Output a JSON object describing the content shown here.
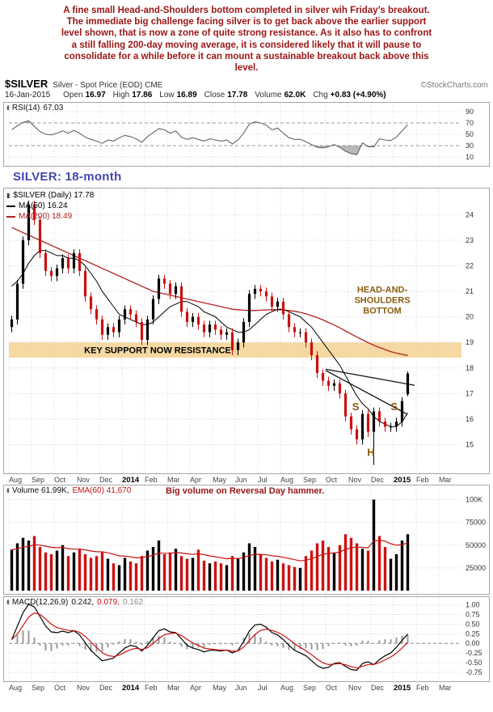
{
  "annotation_header": {
    "lines": [
      "A fine small Head-and-Shoulders bottom completed in silver wih Friday’s breakout.",
      "The immediate big challenge facing silver is to get back above the earlier support",
      "level shown, that is now a zone of quite strong resistance. As it also has to confront",
      "a still falling 200-day moving average, it is considered likely that it will pause to",
      "consolidate for a while before it can mount a sustainable breakout back above this",
      "level."
    ]
  },
  "title": {
    "symbol": "$SILVER",
    "description": "Silver - Spot Price (EOD) CME",
    "copyright": "©StockCharts.com"
  },
  "quote": {
    "date": "16-Jan-2015",
    "items": [
      {
        "label": "Open",
        "value": "16.97"
      },
      {
        "label": "High",
        "value": "17.86"
      },
      {
        "label": "Low",
        "value": "16.89"
      },
      {
        "label": "Close",
        "value": "17.78"
      },
      {
        "label": "Volume",
        "value": "62.0K"
      },
      {
        "label": "Chg",
        "value": "+0.83 (+4.90%)"
      }
    ]
  },
  "rsi_panel": {
    "label": "RSI(14)",
    "value": "67.03"
  },
  "price_panel": {
    "watermark": "SILVER: 18-month",
    "legend": [
      {
        "label": "$SILVER (Daily)",
        "value": "17.78",
        "color": "#000000"
      },
      {
        "label": "MA(50)",
        "value": "16.24",
        "color": "#000000"
      },
      {
        "label": "MA(200)",
        "value": "18.49",
        "color": "#b22222"
      }
    ],
    "band_label": "KEY SUPPORT NOW RESISTANCE",
    "hs_label_lines": [
      "HEAD-AND-",
      "SHOULDERS",
      "BOTTOM"
    ]
  },
  "volume_panel": {
    "label": "Volume 61.99K,",
    "ema_label": "EMA(60) 41,670",
    "annotation": "Big volume on Reversal Day hammer."
  },
  "macd_panel": {
    "label": "MACD(12,26,9)",
    "macd_value": "0.242,",
    "signal_value": "0.079,",
    "hist_value": "0.162"
  },
  "colors": {
    "commentary": "#9b1515",
    "watermark_blue": "#4646ad",
    "annotation_brown": "#8a5c10",
    "band": "#f6d9a2",
    "up": "#000000",
    "down": "#cc1111",
    "signal_red": "#cc1111",
    "rsi_line": "#666666",
    "hist_gray": "#999999",
    "ma50": "#000000",
    "ma200": "#b22222"
  },
  "chart_data": {
    "x_axis": {
      "slots": 80,
      "month_slot": 4,
      "months": [
        "Aug",
        "Sep",
        "Oct",
        "Nov",
        "Dec",
        "2014",
        "Feb",
        "Mar",
        "Apr",
        "May",
        "Jun",
        "Jul",
        "Aug",
        "Sep",
        "Oct",
        "Nov",
        "Dec",
        "2015",
        "Feb",
        "Mar"
      ],
      "bold_indices": [
        5,
        17
      ]
    },
    "charts": [
      {
        "id": "rsi",
        "type": "line",
        "title": "RSI(14)",
        "last": 67.03,
        "ylim": [
          0,
          100
        ],
        "overbought": 70,
        "oversold": 30,
        "yticks": [
          [
            "90",
            90
          ],
          [
            "70",
            70
          ],
          [
            "50",
            50
          ],
          [
            "30",
            30
          ],
          [
            "10",
            10
          ]
        ],
        "values": [
          58,
          65,
          71,
          74,
          64,
          55,
          50,
          49,
          52,
          56,
          52,
          57,
          52,
          45,
          41,
          38,
          34,
          40,
          38,
          44,
          48,
          46,
          42,
          36,
          46,
          53,
          60,
          58,
          52,
          56,
          45,
          41,
          44,
          41,
          38,
          42,
          40,
          38,
          40,
          33,
          40,
          52,
          68,
          72,
          70,
          66,
          58,
          61,
          52,
          44,
          41,
          41,
          37,
          32,
          27,
          26,
          28,
          32,
          27,
          20,
          16,
          14,
          35,
          28,
          28,
          42,
          40,
          39,
          45,
          56,
          67
        ]
      },
      {
        "id": "price",
        "type": "candlestick",
        "title": "$SILVER (Daily)",
        "last": 17.78,
        "ylim": [
          14.0,
          24.9
        ],
        "yticks": [
          [
            "24",
            24
          ],
          [
            "23",
            23
          ],
          [
            "22",
            22
          ],
          [
            "21",
            21
          ],
          [
            "20",
            20
          ],
          [
            "19",
            19
          ],
          [
            "18",
            18
          ],
          [
            "17",
            17
          ],
          [
            "16",
            16
          ],
          [
            "15",
            15
          ]
        ],
        "first_open": 19.6,
        "closes": [
          19.9,
          21.3,
          23.0,
          24.4,
          23.8,
          22.5,
          21.8,
          21.6,
          21.9,
          22.3,
          21.9,
          22.5,
          21.8,
          20.8,
          20.3,
          19.9,
          19.3,
          19.6,
          19.4,
          19.9,
          20.3,
          20.1,
          19.8,
          19.1,
          19.9,
          20.7,
          21.5,
          21.3,
          20.9,
          21.2,
          20.2,
          19.8,
          20.0,
          19.7,
          19.4,
          19.7,
          19.5,
          19.3,
          19.4,
          18.7,
          19.0,
          19.8,
          20.9,
          21.1,
          21.0,
          20.8,
          20.4,
          20.6,
          20.1,
          19.6,
          19.4,
          19.4,
          19.0,
          18.5,
          17.8,
          17.5,
          17.3,
          17.4,
          17.0,
          16.1,
          15.6,
          15.2,
          16.2,
          15.5,
          16.3,
          15.9,
          15.7,
          15.7,
          15.9,
          16.7,
          17.78
        ],
        "low_overrides": {
          "61": 15.0,
          "64": 14.2
        },
        "last_bar": {
          "open": 16.97,
          "high": 17.86,
          "low": 16.89,
          "close": 17.78
        },
        "ma50": [
          21.2,
          21.4,
          21.7,
          22.1,
          22.4,
          22.6,
          22.6,
          22.5,
          22.4,
          22.4,
          22.3,
          22.3,
          22.2,
          22.0,
          21.7,
          21.4,
          21.0,
          20.7,
          20.4,
          20.1,
          20.0,
          19.9,
          19.8,
          19.7,
          19.7,
          19.8,
          20.0,
          20.2,
          20.4,
          20.5,
          20.6,
          20.6,
          20.5,
          20.4,
          20.2,
          20.1,
          20.0,
          19.8,
          19.6,
          19.5,
          19.4,
          19.4,
          19.5,
          19.7,
          19.9,
          20.1,
          20.2,
          20.3,
          20.3,
          20.2,
          20.1,
          20.0,
          19.8,
          19.6,
          19.3,
          19.0,
          18.7,
          18.4,
          18.1,
          17.7,
          17.3,
          16.9,
          16.6,
          16.4,
          16.1,
          15.9,
          15.8,
          15.7,
          15.7,
          15.9,
          16.24
        ],
        "ma200": [
          23.5,
          23.4,
          23.3,
          23.2,
          23.1,
          23.0,
          22.9,
          22.8,
          22.7,
          22.6,
          22.5,
          22.4,
          22.3,
          22.2,
          22.1,
          22.0,
          21.9,
          21.8,
          21.7,
          21.6,
          21.5,
          21.4,
          21.3,
          21.2,
          21.1,
          21.0,
          20.95,
          20.9,
          20.85,
          20.8,
          20.75,
          20.7,
          20.65,
          20.6,
          20.55,
          20.5,
          20.45,
          20.4,
          20.35,
          20.3,
          20.28,
          20.26,
          20.25,
          20.25,
          20.26,
          20.27,
          20.28,
          20.28,
          20.27,
          20.25,
          20.22,
          20.18,
          20.12,
          20.05,
          19.97,
          19.88,
          19.78,
          19.68,
          19.57,
          19.45,
          19.33,
          19.21,
          19.1,
          18.99,
          18.89,
          18.8,
          18.72,
          18.64,
          18.58,
          18.53,
          18.49
        ],
        "support_band": [
          18.4,
          19.0
        ],
        "trendlines": [
          [
            [
              55.5,
              17.95
            ],
            [
              71.2,
              17.32
            ]
          ],
          [
            [
              55.5,
              17.9
            ],
            [
              69.8,
              16.2
            ]
          ]
        ],
        "letters": [
          {
            "t": "S",
            "i": 60.8,
            "p": 16.35
          },
          {
            "t": "H",
            "i": 63.5,
            "p": 14.55
          },
          {
            "t": "S",
            "i": 67.6,
            "p": 16.35
          }
        ],
        "hs_label": {
          "i": 65.5,
          "p": 20.95
        }
      },
      {
        "id": "volume",
        "type": "bar",
        "title": "Volume",
        "last_k": 62.0,
        "ema_period": 13,
        "ylim": [
          0,
          112
        ],
        "yticks": [
          [
            "100K",
            100
          ],
          [
            "75000",
            75
          ],
          [
            "50000",
            50
          ],
          [
            "25000",
            25
          ]
        ],
        "values_k": [
          45,
          52,
          58,
          55,
          60,
          48,
          42,
          40,
          44,
          50,
          38,
          42,
          46,
          40,
          36,
          38,
          42,
          35,
          30,
          28,
          36,
          32,
          30,
          38,
          44,
          48,
          55,
          40,
          42,
          46,
          38,
          35,
          36,
          45,
          33,
          30,
          32,
          30,
          28,
          38,
          35,
          42,
          52,
          48,
          40,
          36,
          32,
          34,
          30,
          28,
          26,
          25,
          38,
          44,
          52,
          55,
          48,
          42,
          50,
          62,
          58,
          52,
          46,
          44,
          100,
          60,
          48,
          35,
          40,
          55,
          62
        ]
      },
      {
        "id": "macd",
        "type": "line",
        "title": "MACD(12,26,9)",
        "signal_period": 4,
        "ylim": [
          -0.9,
          1.12
        ],
        "yticks": [
          [
            "1.00",
            1.0
          ],
          [
            "0.75",
            0.75
          ],
          [
            "0.50",
            0.5
          ],
          [
            "0.25",
            0.25
          ],
          [
            "0.00",
            0.0
          ],
          [
            "-0.25",
            -0.25
          ],
          [
            "-0.50",
            -0.5
          ],
          [
            "-0.75",
            -0.75
          ]
        ],
        "macd": [
          0.1,
          0.45,
          0.8,
          1.02,
          0.95,
          0.7,
          0.45,
          0.3,
          0.28,
          0.32,
          0.28,
          0.33,
          0.22,
          0.02,
          -0.18,
          -0.32,
          -0.45,
          -0.42,
          -0.38,
          -0.25,
          -0.12,
          -0.05,
          -0.08,
          -0.2,
          -0.05,
          0.15,
          0.33,
          0.38,
          0.3,
          0.28,
          0.12,
          -0.05,
          -0.12,
          -0.16,
          -0.22,
          -0.18,
          -0.18,
          -0.2,
          -0.17,
          -0.25,
          -0.18,
          0.05,
          0.32,
          0.48,
          0.5,
          0.42,
          0.28,
          0.22,
          0.1,
          -0.05,
          -0.18,
          -0.25,
          -0.32,
          -0.45,
          -0.58,
          -0.65,
          -0.62,
          -0.52,
          -0.5,
          -0.6,
          -0.68,
          -0.7,
          -0.52,
          -0.48,
          -0.55,
          -0.42,
          -0.32,
          -0.25,
          -0.1,
          0.08,
          0.242
        ]
      }
    ]
  }
}
